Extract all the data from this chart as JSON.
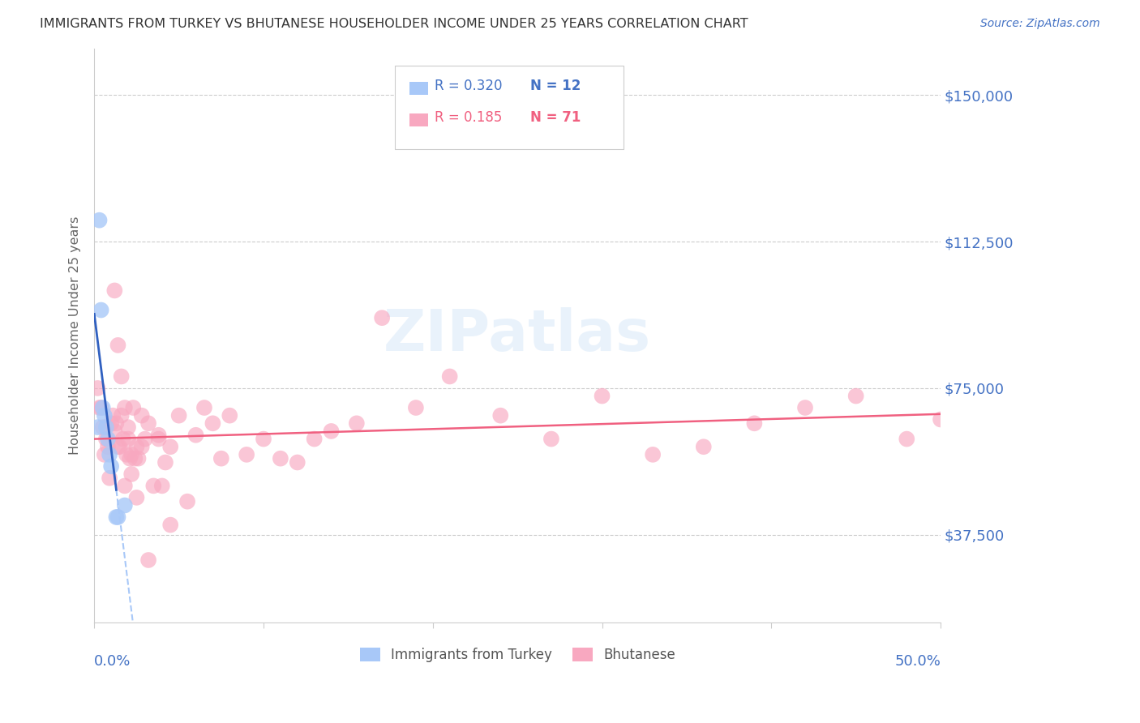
{
  "title": "IMMIGRANTS FROM TURKEY VS BHUTANESE HOUSEHOLDER INCOME UNDER 25 YEARS CORRELATION CHART",
  "source": "Source: ZipAtlas.com",
  "ylabel": "Householder Income Under 25 years",
  "ytick_values": [
    37500,
    75000,
    112500,
    150000
  ],
  "ytick_labels": [
    "$37,500",
    "$75,000",
    "$112,500",
    "$150,000"
  ],
  "xlim": [
    0.0,
    0.5
  ],
  "ylim": [
    15000,
    162000
  ],
  "legend_r_turkey": "0.320",
  "legend_n_turkey": "12",
  "legend_r_bhutan": "0.185",
  "legend_n_bhutan": "71",
  "color_turkey": "#a8c8f8",
  "color_bhutan": "#f8a8c0",
  "trendline_turkey_color": "#3060c0",
  "trendline_turkey_ext_color": "#a8c8f8",
  "trendline_bhutan_color": "#f06080",
  "watermark": "ZIPatlas",
  "blue_label_color": "#4472c4",
  "pink_label_color": "#f06080",
  "turkey_x": [
    0.002,
    0.003,
    0.004,
    0.005,
    0.006,
    0.007,
    0.008,
    0.009,
    0.01,
    0.013,
    0.014,
    0.018
  ],
  "turkey_y": [
    65000,
    118000,
    95000,
    70000,
    68000,
    65000,
    62000,
    58000,
    55000,
    42000,
    42000,
    45000
  ],
  "bhutan_x": [
    0.002,
    0.003,
    0.004,
    0.005,
    0.006,
    0.007,
    0.008,
    0.009,
    0.01,
    0.011,
    0.012,
    0.013,
    0.014,
    0.015,
    0.016,
    0.017,
    0.018,
    0.019,
    0.02,
    0.021,
    0.022,
    0.023,
    0.024,
    0.025,
    0.026,
    0.028,
    0.03,
    0.032,
    0.035,
    0.038,
    0.04,
    0.042,
    0.045,
    0.05,
    0.055,
    0.06,
    0.065,
    0.07,
    0.075,
    0.08,
    0.09,
    0.1,
    0.11,
    0.12,
    0.13,
    0.14,
    0.155,
    0.17,
    0.19,
    0.21,
    0.24,
    0.27,
    0.3,
    0.33,
    0.36,
    0.39,
    0.42,
    0.45,
    0.48,
    0.5,
    0.012,
    0.014,
    0.016,
    0.018,
    0.02,
    0.022,
    0.025,
    0.028,
    0.032,
    0.038,
    0.045
  ],
  "bhutan_y": [
    75000,
    70000,
    70000,
    65000,
    58000,
    62000,
    60000,
    52000,
    66000,
    68000,
    64000,
    66000,
    60000,
    60000,
    68000,
    62000,
    70000,
    58000,
    65000,
    57000,
    58000,
    70000,
    57000,
    60000,
    57000,
    60000,
    62000,
    66000,
    50000,
    63000,
    50000,
    56000,
    60000,
    68000,
    46000,
    63000,
    70000,
    66000,
    57000,
    68000,
    58000,
    62000,
    57000,
    56000,
    62000,
    64000,
    66000,
    93000,
    70000,
    78000,
    68000,
    62000,
    73000,
    58000,
    60000,
    66000,
    70000,
    73000,
    62000,
    67000,
    100000,
    86000,
    78000,
    50000,
    62000,
    53000,
    47000,
    68000,
    31000,
    62000,
    40000
  ]
}
